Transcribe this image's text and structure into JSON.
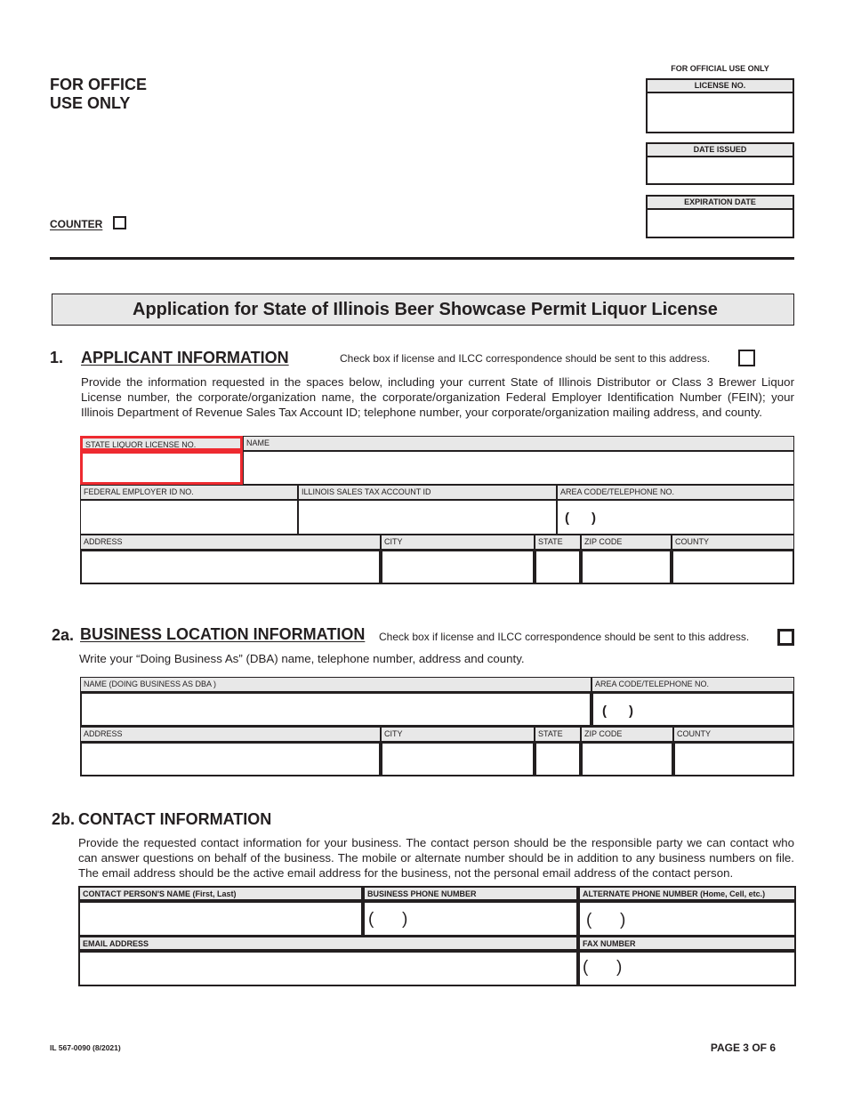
{
  "office": {
    "title_line1": "FOR OFFICE",
    "title_line2": "USE ONLY",
    "counter_label": "COUNTER",
    "official_use": "FOR OFFICIAL USE ONLY",
    "license_no": "LICENSE NO.",
    "date_issued": "DATE ISSUED",
    "expiration_date": "EXPIRATION DATE"
  },
  "title": "Application for State of Illinois Beer Showcase Permit Liquor License",
  "section1": {
    "number": "1.",
    "heading": "APPLICANT INFORMATION",
    "check_note": "Check box if license and ILCC correspondence should be sent to this address.",
    "paragraph": "Provide the information requested in the spaces below, including your current State of Illinois Distributor or Class 3 Brewer Liquor License number, the corporate/organization name, the corporate/organization Federal Employer Identification Number (FEIN); your Illinois Department of Revenue Sales Tax Account ID; telephone number, your corporate/organization mailing address, and county.",
    "fields": {
      "state_liquor_license": "STATE LIQUOR LICENSE NO.",
      "name": "NAME",
      "fein": "FEDERAL EMPLOYER ID NO.",
      "sales_tax": "ILLINOIS SALES TAX ACCOUNT ID",
      "phone": "AREA CODE/TELEPHONE NO.",
      "address": "ADDRESS",
      "city": "CITY",
      "state": "STATE",
      "zip": "ZIP CODE",
      "county": "COUNTY"
    }
  },
  "section2a": {
    "number": "2a.",
    "heading": "BUSINESS LOCATION INFORMATION",
    "check_note": "Check box if license and ILCC correspondence should be sent to this address.",
    "paragraph": "Write your “Doing Business As” (DBA) name, telephone number, address and county.",
    "fields": {
      "dba": "NAME (DOING BUSINESS AS DBA )",
      "phone": "AREA CODE/TELEPHONE NO.",
      "address": "ADDRESS",
      "city": "CITY",
      "state": "STATE",
      "zip": "ZIP CODE",
      "county": "COUNTY"
    }
  },
  "section2b": {
    "number": "2b.",
    "heading": "CONTACT INFORMATION",
    "paragraph": "Provide the requested contact information for your business. The contact person should be the responsible party we can contact who can answer questions on behalf of the business. The mobile or alternate number should be in addition to any business numbers on file. The email address should be the active email address for the business, not the personal email address of the contact person.",
    "fields": {
      "contact_name": "CONTACT PERSON'S NAME (First, Last)",
      "business_phone": "BUSINESS PHONE NUMBER",
      "alt_phone": "ALTERNATE PHONE NUMBER (Home, Cell, etc.)",
      "email": "EMAIL ADDRESS",
      "fax": "FAX NUMBER"
    }
  },
  "phone_parens": "(      )",
  "footer": {
    "form_id": "IL 567-0090 (8/2021)",
    "page": "PAGE 3 OF 6"
  },
  "colors": {
    "highlight": "#ee2a30",
    "header_fill": "#e8e8e8"
  }
}
